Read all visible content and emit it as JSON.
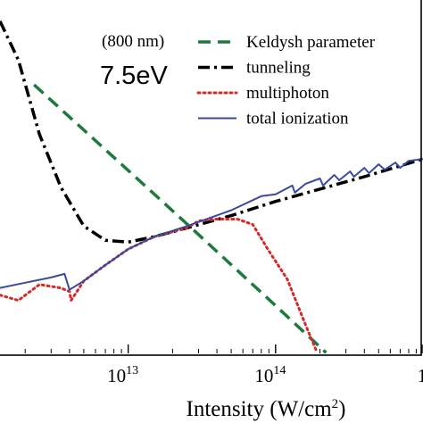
{
  "chart_data": {
    "type": "line",
    "annotations": [
      "(800 nm)",
      "7.5eV"
    ],
    "xlabel": "Intensity (W/cm",
    "xlabel_sup": "2",
    "xlabel_tail": ")",
    "x_scale": "log",
    "xlim": [
      1350000000000.0,
      1000000000000000.0
    ],
    "x_ticks": [
      {
        "value": 10000000000000.0,
        "base": "10",
        "exp": "13"
      },
      {
        "value": 100000000000000.0,
        "base": "10",
        "exp": "14"
      },
      {
        "value": 1000000000000000.0,
        "base": "1",
        "exp": ""
      }
    ],
    "ylim": [
      0,
      10
    ],
    "y_ticks_visible": false,
    "grid": false,
    "legend_position": "top-right",
    "colors": {
      "keldysh": "#1e7a3c",
      "tunneling": "#000000",
      "multiphoton": "#d42a2a",
      "total": "#3a4aa0"
    },
    "series": [
      {
        "name": "Keldysh parameter",
        "key": "keldysh",
        "style": "dashed",
        "points": [
          [
            2300000000000.0,
            7.6
          ],
          [
            10000000000000.0,
            5.18
          ],
          [
            26000000000000.0,
            3.6
          ],
          [
            100000000000000.0,
            1.35
          ],
          [
            220000000000000.0,
            0.02
          ]
        ]
      },
      {
        "name": "tunneling",
        "key": "tunneling",
        "style": "dashdot",
        "points": [
          [
            1350000000000.0,
            9.4
          ],
          [
            1800000000000.0,
            8.3
          ],
          [
            2500000000000.0,
            6.2
          ],
          [
            3500000000000.0,
            4.7
          ],
          [
            5000000000000.0,
            3.6
          ],
          [
            7000000000000.0,
            3.2
          ],
          [
            10000000000000.0,
            3.15
          ],
          [
            15000000000000.0,
            3.3
          ],
          [
            25000000000000.0,
            3.55
          ],
          [
            50000000000000.0,
            3.9
          ],
          [
            100000000000000.0,
            4.3
          ],
          [
            200000000000000.0,
            4.65
          ],
          [
            400000000000000.0,
            5.0
          ],
          [
            1000000000000000.0,
            5.5
          ]
        ]
      },
      {
        "name": "multiphoton",
        "key": "multiphoton",
        "style": "dotted",
        "points": [
          [
            1350000000000.0,
            1.65
          ],
          [
            1800000000000.0,
            1.5
          ],
          [
            2500000000000.0,
            1.95
          ],
          [
            3500000000000.0,
            1.85
          ],
          [
            4000000000000.0,
            1.75
          ],
          [
            4100000000000.0,
            1.5
          ],
          [
            5000000000000.0,
            2.05
          ],
          [
            7000000000000.0,
            2.5
          ],
          [
            10000000000000.0,
            2.95
          ],
          [
            15000000000000.0,
            3.3
          ],
          [
            25000000000000.0,
            3.55
          ],
          [
            30000000000000.0,
            3.75
          ],
          [
            40000000000000.0,
            3.8
          ],
          [
            55000000000000.0,
            3.8
          ],
          [
            70000000000000.0,
            3.65
          ],
          [
            90000000000000.0,
            2.9
          ],
          [
            120000000000000.0,
            2.1
          ],
          [
            160000000000000.0,
            0.8
          ],
          [
            190000000000000.0,
            0.05
          ]
        ]
      },
      {
        "name": "total ionization",
        "key": "total",
        "style": "solid",
        "points": [
          [
            1350000000000.0,
            1.85
          ],
          [
            2000000000000.0,
            2.0
          ],
          [
            3000000000000.0,
            2.15
          ],
          [
            3700000000000.0,
            2.25
          ],
          [
            4000000000000.0,
            1.8
          ],
          [
            5000000000000.0,
            2.05
          ],
          [
            7000000000000.0,
            2.5
          ],
          [
            10000000000000.0,
            2.95
          ],
          [
            15000000000000.0,
            3.3
          ],
          [
            25000000000000.0,
            3.6
          ],
          [
            50000000000000.0,
            4.05
          ],
          [
            80000000000000.0,
            4.45
          ],
          [
            100000000000000.0,
            4.5
          ],
          [
            130000000000000.0,
            4.75
          ],
          [
            135000000000000.0,
            4.55
          ],
          [
            160000000000000.0,
            4.8
          ],
          [
            200000000000000.0,
            4.95
          ],
          [
            210000000000000.0,
            4.75
          ],
          [
            250000000000000.0,
            5.05
          ],
          [
            270000000000000.0,
            4.9
          ],
          [
            320000000000000.0,
            5.15
          ],
          [
            340000000000000.0,
            5.0
          ],
          [
            400000000000000.0,
            5.25
          ],
          [
            430000000000000.0,
            5.1
          ],
          [
            500000000000000.0,
            5.35
          ],
          [
            550000000000000.0,
            5.2
          ],
          [
            650000000000000.0,
            5.4
          ],
          [
            700000000000000.0,
            5.25
          ],
          [
            800000000000000.0,
            5.45
          ],
          [
            1000000000000000.0,
            5.5
          ]
        ]
      }
    ]
  }
}
